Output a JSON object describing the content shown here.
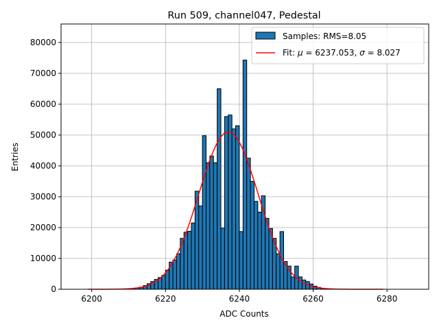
{
  "chart_data": {
    "type": "bar",
    "title": "Run 509, channel047, Pedestal",
    "xlabel": "ADC Counts",
    "ylabel": "Entries",
    "xlim": [
      6191.7,
      6291.3
    ],
    "ylim": [
      0,
      86000
    ],
    "xticks": [
      6200,
      6220,
      6240,
      6260,
      6280
    ],
    "yticks": [
      0,
      10000,
      20000,
      30000,
      40000,
      50000,
      60000,
      70000,
      80000
    ],
    "grid": true,
    "legend": {
      "location": "top-right",
      "entries": [
        {
          "id": "hist",
          "label": "Samples: RMS=8.05"
        },
        {
          "id": "fit",
          "label_prefix": "Fit: ",
          "mu_symbol": "μ",
          "mu_text": " = 6237.053, ",
          "sigma_symbol": "σ",
          "sigma_text": " = 8.027"
        }
      ]
    },
    "histogram": {
      "name": "Samples",
      "bin_width": 1,
      "bin_lefts": [
        6211,
        6212,
        6213,
        6214,
        6215,
        6216,
        6217,
        6218,
        6219,
        6220,
        6221,
        6222,
        6223,
        6224,
        6225,
        6226,
        6227,
        6228,
        6229,
        6230,
        6231,
        6232,
        6233,
        6234,
        6235,
        6236,
        6237,
        6238,
        6239,
        6240,
        6241,
        6242,
        6243,
        6244,
        6245,
        6246,
        6247,
        6248,
        6249,
        6250,
        6251,
        6252,
        6253,
        6254,
        6255,
        6256,
        6257,
        6258,
        6259,
        6260,
        6261,
        6262,
        6263
      ],
      "counts": [
        200,
        400,
        700,
        1200,
        1800,
        2500,
        3200,
        3800,
        4500,
        6200,
        8800,
        9500,
        11500,
        16500,
        18500,
        18800,
        21500,
        31800,
        27000,
        49800,
        41000,
        43200,
        41000,
        65000,
        19800,
        56000,
        56500,
        52000,
        53000,
        18700,
        74300,
        42500,
        35000,
        28500,
        25000,
        30300,
        23000,
        19700,
        16500,
        11500,
        18700,
        9000,
        7500,
        4000,
        7500,
        4000,
        3000,
        2500,
        1700,
        1000,
        600,
        300,
        100
      ]
    },
    "fit": {
      "name": "Fit",
      "color": "#ff0000",
      "mu": 6237.053,
      "sigma": 8.027,
      "amplitude": 51000,
      "x_range": [
        6199,
        6279
      ]
    },
    "colors": {
      "bar_fill": "#1f77b4",
      "bar_edge": "#000000",
      "grid": "#b0b0b0"
    }
  }
}
